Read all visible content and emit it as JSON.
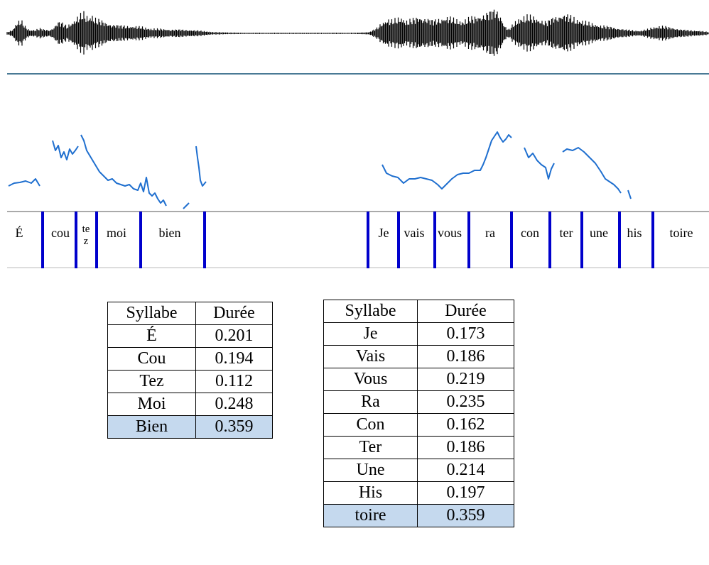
{
  "transcript_left": [
    "É",
    "cou",
    "te",
    "z",
    "moi",
    "bien"
  ],
  "transcript_right": [
    "Je",
    "vais",
    "vous",
    "ra",
    "con",
    "ter",
    "une",
    "his",
    "toire"
  ],
  "table1": {
    "header": [
      "Syllabe",
      "Durée"
    ],
    "rows": [
      [
        "É",
        "0.201"
      ],
      [
        "Cou",
        "0.194"
      ],
      [
        "Tez",
        "0.112"
      ],
      [
        "Moi",
        "0.248"
      ],
      [
        "Bien",
        "0.359"
      ]
    ]
  },
  "table2": {
    "header": [
      "Syllabe",
      "Durée"
    ],
    "rows": [
      [
        "Je",
        "0.173"
      ],
      [
        "Vais",
        "0.186"
      ],
      [
        "Vous",
        "0.219"
      ],
      [
        "Ra",
        "0.235"
      ],
      [
        "Con",
        "0.162"
      ],
      [
        "Ter",
        "0.186"
      ],
      [
        "Une",
        "0.214"
      ],
      [
        "His",
        "0.197"
      ],
      [
        "toire",
        "0.359"
      ]
    ]
  },
  "colors": {
    "pitch": "#1f6fcf",
    "boundary": "#0000cc",
    "waveform": "#000000",
    "axis": "#4a7a95",
    "highlight": "#c5d9ee"
  }
}
